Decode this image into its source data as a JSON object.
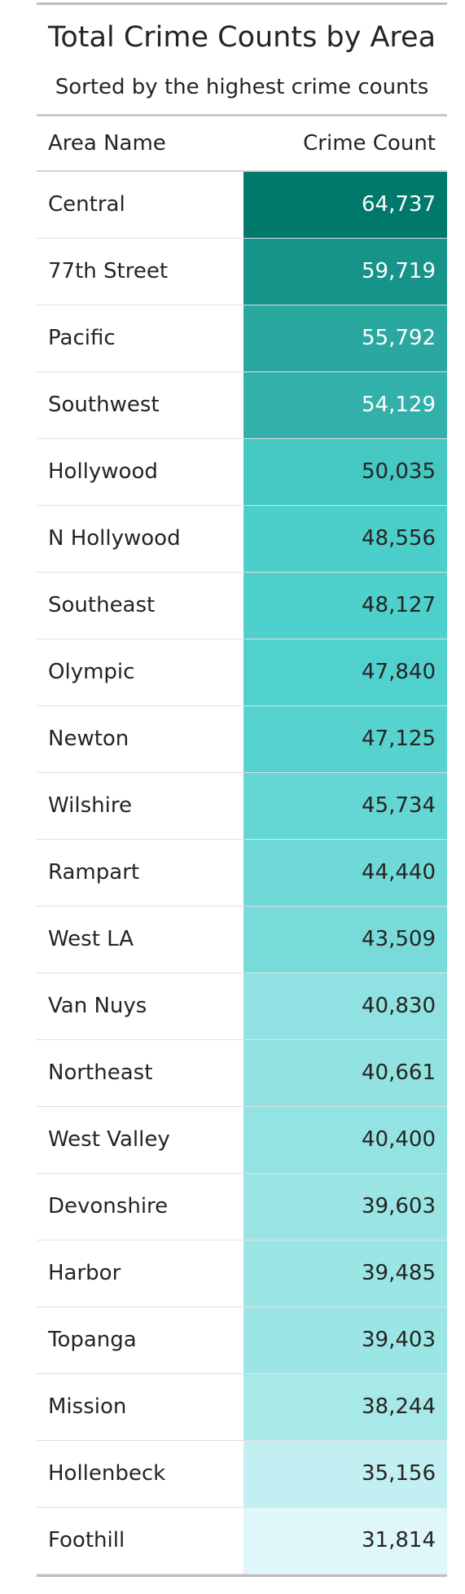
{
  "title": "Total Crime Counts by Area",
  "subtitle": "Sorted by the highest crime counts",
  "columns": {
    "area": "Area Name",
    "count": "Crime Count"
  },
  "colors": {
    "max": "#00796b",
    "min": "#e0f7fa",
    "light_text": "#ffffff",
    "dark_text": "#252423"
  },
  "chart_data": {
    "type": "table",
    "title": "Total Crime Counts by Area",
    "subtitle": "Sorted by the highest crime counts",
    "columns": [
      "Area Name",
      "Crime Count"
    ],
    "rows": [
      {
        "area": "Central",
        "count": 64737,
        "label": "64,737"
      },
      {
        "area": "77th Street",
        "count": 59719,
        "label": "59,719"
      },
      {
        "area": "Pacific",
        "count": 55792,
        "label": "55,792"
      },
      {
        "area": "Southwest",
        "count": 54129,
        "label": "54,129"
      },
      {
        "area": "Hollywood",
        "count": 50035,
        "label": "50,035"
      },
      {
        "area": "N Hollywood",
        "count": 48556,
        "label": "48,556"
      },
      {
        "area": "Southeast",
        "count": 48127,
        "label": "48,127"
      },
      {
        "area": "Olympic",
        "count": 47840,
        "label": "47,840"
      },
      {
        "area": "Newton",
        "count": 47125,
        "label": "47,125"
      },
      {
        "area": "Wilshire",
        "count": 45734,
        "label": "45,734"
      },
      {
        "area": "Rampart",
        "count": 44440,
        "label": "44,440"
      },
      {
        "area": "West LA",
        "count": 43509,
        "label": "43,509"
      },
      {
        "area": "Van Nuys",
        "count": 40830,
        "label": "40,830"
      },
      {
        "area": "Northeast",
        "count": 40661,
        "label": "40,661"
      },
      {
        "area": "West Valley",
        "count": 40400,
        "label": "40,400"
      },
      {
        "area": "Devonshire",
        "count": 39603,
        "label": "39,603"
      },
      {
        "area": "Harbor",
        "count": 39485,
        "label": "39,485"
      },
      {
        "area": "Topanga",
        "count": 39403,
        "label": "39,403"
      },
      {
        "area": "Mission",
        "count": 38244,
        "label": "38,244"
      },
      {
        "area": "Hollenbeck",
        "count": 35156,
        "label": "35,156"
      },
      {
        "area": "Foothill",
        "count": 31814,
        "label": "31,814"
      }
    ]
  }
}
